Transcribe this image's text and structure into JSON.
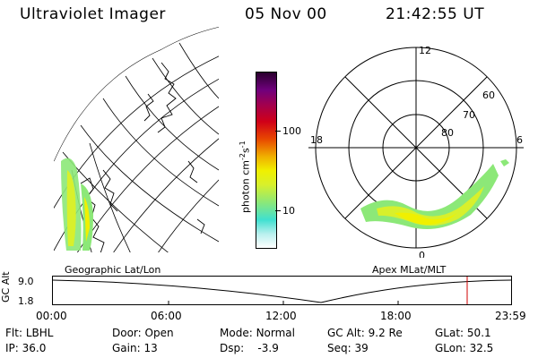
{
  "header": {
    "instrument": "Ultraviolet Imager",
    "date": "05 Nov 00",
    "time": "21:42:55 UT"
  },
  "colorbar": {
    "unit_label": "photon cm",
    "unit_exp1": "-2",
    "unit_mid": "s",
    "unit_exp2": "-1",
    "tick_high": "100",
    "tick_low": "10",
    "scale": "log",
    "colors": [
      "#ffffff",
      "#b8f0ee",
      "#40e0d0",
      "#8ce878",
      "#d8f02c",
      "#f0f000",
      "#f0b000",
      "#e84800",
      "#d00018",
      "#a00050",
      "#70007c",
      "#2a002e"
    ]
  },
  "geo_panel": {
    "caption": "Geographic Lat/Lon"
  },
  "polar_panel": {
    "caption": "Apex MLat/MLT",
    "mlt_labels": {
      "top": "12",
      "left": "18",
      "right": "6",
      "bottom": "0"
    },
    "lat_labels": [
      "60",
      "70",
      "80"
    ]
  },
  "timeline": {
    "axis_label": "GC Alt",
    "y_ticks": [
      "9.0",
      "1.8"
    ],
    "x_ticks": [
      "00:00",
      "06:00",
      "12:00",
      "18:00",
      "23:59"
    ]
  },
  "footer": {
    "row1": [
      {
        "label": "Flt:",
        "value": "LBHL"
      },
      {
        "label": "Door:",
        "value": "Open"
      },
      {
        "label": "Mode:",
        "value": "Normal"
      },
      {
        "label": "GC Alt:",
        "value": "9.2 Re"
      },
      {
        "label": "GLat:",
        "value": "50.1"
      }
    ],
    "row2": [
      {
        "label": "IP:",
        "value": "36.0"
      },
      {
        "label": "Gain:",
        "value": "13"
      },
      {
        "label": "Dsp:",
        "value": "-3.9"
      },
      {
        "label": "Seq:",
        "value": "39"
      },
      {
        "label": "GLon:",
        "value": "32.5"
      }
    ]
  }
}
